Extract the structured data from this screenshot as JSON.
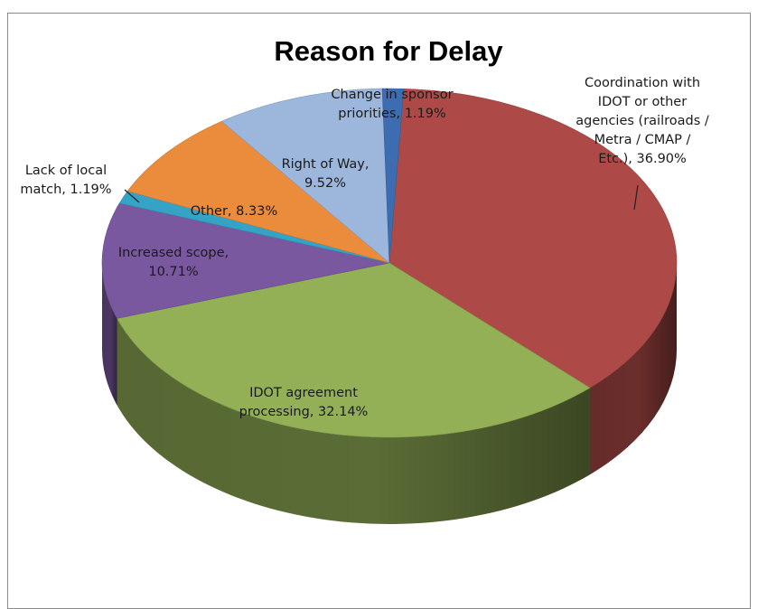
{
  "chart_data": {
    "type": "pie",
    "title": "Reason for Delay",
    "slices": [
      {
        "name": "Coordination with IDOT or other agencies (railroads / Metra / CMAP / Etc.)",
        "value": 36.9,
        "label_lines": [
          "Coordination with",
          "IDOT or other",
          "agencies (railroads /",
          "Metra / CMAP /",
          "Etc.), 36.90%"
        ],
        "color": "#ad4a47"
      },
      {
        "name": "IDOT agreement processing",
        "value": 32.14,
        "label_lines": [
          "IDOT agreement",
          "processing, 32.14%"
        ],
        "color": "#93b057"
      },
      {
        "name": "Increased scope",
        "value": 10.71,
        "label_lines": [
          "Increased scope,",
          "10.71%"
        ],
        "color": "#7a58a0"
      },
      {
        "name": "Lack of local match",
        "value": 1.19,
        "label_lines": [
          "Lack of local",
          "match, 1.19%"
        ],
        "color": "#34a3c6"
      },
      {
        "name": "Other",
        "value": 8.33,
        "label_lines": [
          "Other, 8.33%"
        ],
        "color": "#eb8b3c"
      },
      {
        "name": "Right of Way",
        "value": 9.52,
        "label_lines": [
          "Right of Way,",
          "9.52%"
        ],
        "color": "#9cb6dc"
      },
      {
        "name": "Change in sponsor priorities",
        "value": 1.19,
        "label_lines": [
          "Change in sponsor",
          "priorities, 1.19%"
        ],
        "color": "#3d6db0"
      }
    ]
  }
}
